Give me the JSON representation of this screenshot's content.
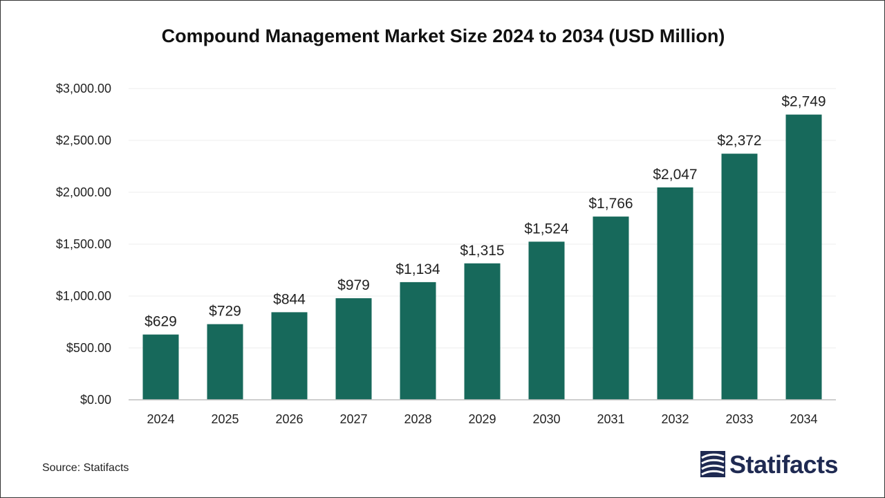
{
  "chart_data": {
    "type": "bar",
    "title": "Compound Management Market Size 2024 to 2034 (USD Million)",
    "categories": [
      "2024",
      "2025",
      "2026",
      "2027",
      "2028",
      "2029",
      "2030",
      "2031",
      "2032",
      "2033",
      "2034"
    ],
    "values": [
      629,
      729,
      844,
      979,
      1134,
      1315,
      1524,
      1766,
      2047,
      2372,
      2749
    ],
    "data_labels": [
      "$629",
      "$729",
      "$844",
      "$979",
      "$1,134",
      "$1,315",
      "$1,524",
      "$1,766",
      "$2,047",
      "$2,372",
      "$2,749"
    ],
    "y_tick_labels": [
      "$0.00",
      "$500.00",
      "$1,000.00",
      "$1,500.00",
      "$2,000.00",
      "$2,500.00",
      "$3,000.00"
    ],
    "y_ticks": [
      0,
      500,
      1000,
      1500,
      2000,
      2500,
      3000
    ],
    "ylim": [
      0,
      3000
    ],
    "xlabel": "",
    "ylabel": "",
    "grid": true,
    "legend": "none",
    "bar_color": "#17695b"
  },
  "footer": {
    "source": "Source: Statifacts",
    "logo_text": "Statifacts",
    "logo_color": "#1f2a52"
  }
}
